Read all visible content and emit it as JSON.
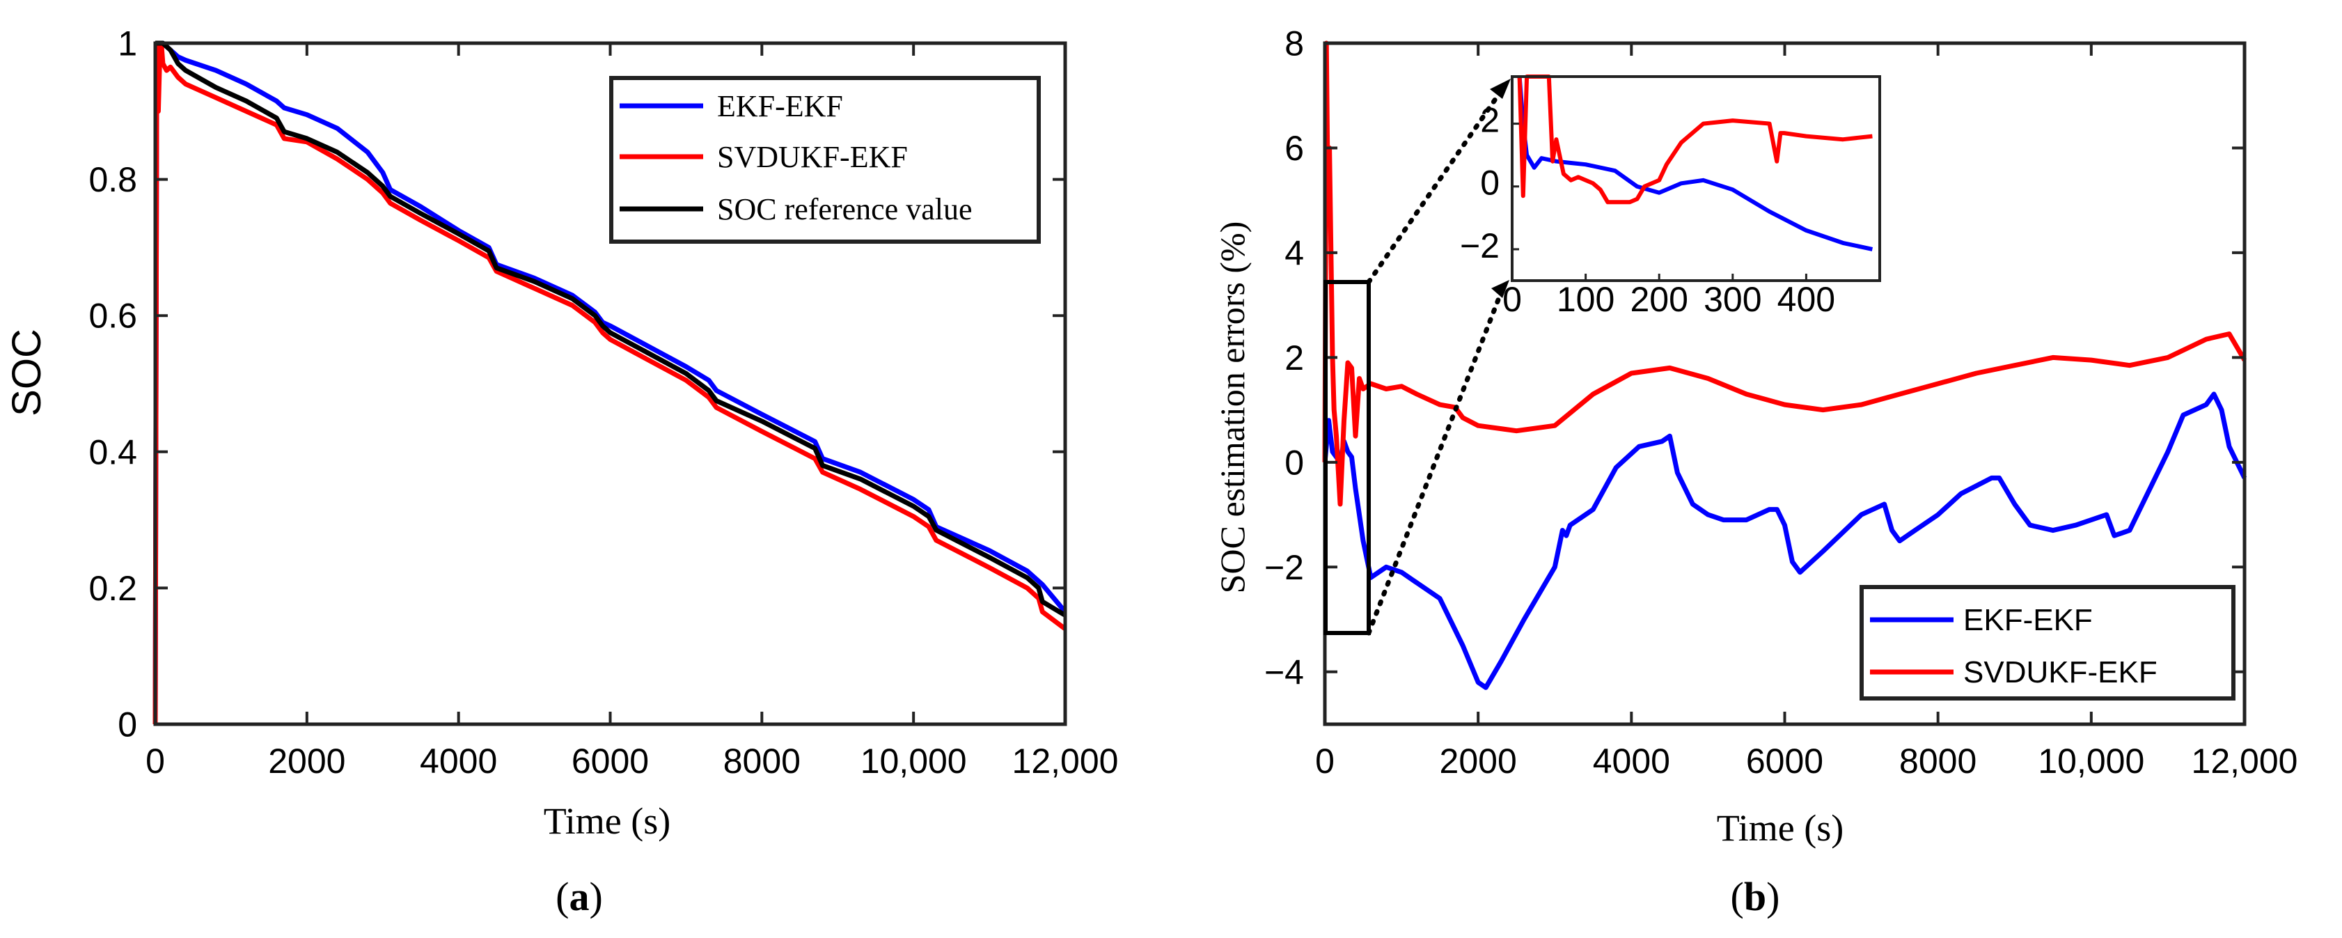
{
  "chart_data": [
    {
      "id": "a",
      "type": "line",
      "panel_label": "a",
      "xlabel": "Time  (s)",
      "ylabel": "SOC",
      "xlim": [
        0,
        12000
      ],
      "ylim": [
        0,
        1
      ],
      "xticks": [
        0,
        2000,
        4000,
        6000,
        8000,
        10000,
        12000
      ],
      "xtick_labels": [
        "0",
        "2000",
        "4000",
        "6000",
        "8000",
        "10,000",
        "12,000"
      ],
      "yticks": [
        0,
        0.2,
        0.4,
        0.6,
        0.8,
        1
      ],
      "ytick_labels": [
        "0",
        "0.2",
        "0.4",
        "0.6",
        "0.8",
        "1"
      ],
      "legend_position": "top-right",
      "series": [
        {
          "name": "EKF-EKF",
          "color": "#0000ff",
          "x": [
            0,
            20,
            60,
            100,
            200,
            300,
            400,
            800,
            1200,
            1600,
            1700,
            2000,
            2400,
            2800,
            3000,
            3100,
            3500,
            4000,
            4400,
            4500,
            5000,
            5500,
            5800,
            5900,
            6000,
            6500,
            7000,
            7300,
            7400,
            8000,
            8700,
            8800,
            9300,
            10000,
            10200,
            10300,
            11000,
            11500,
            11700,
            12000
          ],
          "y": [
            0,
            0.96,
            0.99,
            1.0,
            0.99,
            0.98,
            0.975,
            0.96,
            0.94,
            0.915,
            0.905,
            0.895,
            0.875,
            0.84,
            0.81,
            0.785,
            0.76,
            0.725,
            0.7,
            0.675,
            0.655,
            0.63,
            0.605,
            0.59,
            0.585,
            0.555,
            0.525,
            0.505,
            0.49,
            0.455,
            0.415,
            0.39,
            0.37,
            0.33,
            0.315,
            0.29,
            0.255,
            0.225,
            0.205,
            0.165
          ]
        },
        {
          "name": "SVDUKF-EKF",
          "color": "#ff0000",
          "x": [
            0,
            20,
            40,
            60,
            80,
            100,
            150,
            200,
            300,
            400,
            800,
            1200,
            1600,
            1700,
            2000,
            2400,
            2800,
            3000,
            3100,
            3500,
            4000,
            4400,
            4500,
            5000,
            5500,
            5800,
            5900,
            6000,
            6500,
            7000,
            7300,
            7400,
            8000,
            8700,
            8800,
            9300,
            10000,
            10200,
            10300,
            11000,
            11500,
            11650,
            11700,
            12000
          ],
          "y": [
            0,
            1.0,
            0.9,
            0.98,
            1.0,
            0.97,
            0.96,
            0.965,
            0.95,
            0.94,
            0.92,
            0.9,
            0.88,
            0.86,
            0.855,
            0.83,
            0.8,
            0.78,
            0.765,
            0.74,
            0.71,
            0.685,
            0.665,
            0.64,
            0.615,
            0.59,
            0.575,
            0.565,
            0.535,
            0.505,
            0.48,
            0.465,
            0.43,
            0.39,
            0.37,
            0.345,
            0.305,
            0.29,
            0.27,
            0.23,
            0.2,
            0.185,
            0.165,
            0.14
          ]
        },
        {
          "name": "SOC reference value",
          "color": "#000000",
          "x": [
            0,
            100,
            200,
            300,
            400,
            800,
            1200,
            1600,
            1700,
            2000,
            2400,
            2800,
            3000,
            3100,
            3500,
            4000,
            4400,
            4500,
            5000,
            5500,
            5800,
            5900,
            6000,
            6500,
            7000,
            7300,
            7400,
            8000,
            8700,
            8800,
            9300,
            10000,
            10200,
            10300,
            11000,
            11500,
            11650,
            11700,
            12000
          ],
          "y": [
            1.0,
            1.0,
            0.99,
            0.97,
            0.96,
            0.935,
            0.915,
            0.89,
            0.87,
            0.86,
            0.84,
            0.81,
            0.79,
            0.775,
            0.75,
            0.72,
            0.695,
            0.67,
            0.65,
            0.625,
            0.6,
            0.585,
            0.575,
            0.545,
            0.515,
            0.49,
            0.475,
            0.445,
            0.405,
            0.38,
            0.36,
            0.32,
            0.305,
            0.285,
            0.245,
            0.215,
            0.2,
            0.18,
            0.16
          ]
        }
      ]
    },
    {
      "id": "b",
      "type": "line",
      "panel_label": "b",
      "xlabel": "Time  (s)",
      "ylabel": "SOC estimation errors  (%)",
      "xlim": [
        0,
        12000
      ],
      "ylim": [
        -5,
        8
      ],
      "xticks": [
        0,
        2000,
        4000,
        6000,
        8000,
        10000,
        12000
      ],
      "xtick_labels": [
        "0",
        "2000",
        "4000",
        "6000",
        "8000",
        "10,000",
        "12,000"
      ],
      "yticks": [
        -4,
        -2,
        0,
        2,
        4,
        6,
        8
      ],
      "ytick_labels": [
        "−4",
        "−2",
        "0",
        "2",
        "4",
        "6",
        "8"
      ],
      "legend_position": "bottom-right",
      "series": [
        {
          "name": "EKF-EKF",
          "color": "#0000ff",
          "x": [
            0,
            50,
            100,
            150,
            200,
            250,
            300,
            350,
            400,
            500,
            600,
            700,
            800,
            1000,
            1200,
            1500,
            1800,
            2000,
            2100,
            2300,
            2600,
            3000,
            3100,
            3150,
            3200,
            3300,
            3500,
            3800,
            4100,
            4400,
            4500,
            4600,
            4800,
            5000,
            5200,
            5500,
            5800,
            5900,
            6000,
            6100,
            6200,
            6500,
            7000,
            7300,
            7400,
            7500,
            7700,
            8000,
            8300,
            8700,
            8800,
            9000,
            9200,
            9500,
            9800,
            10000,
            10200,
            10300,
            10500,
            11000,
            11200,
            11500,
            11600,
            11700,
            11800,
            12000
          ],
          "y": [
            0,
            0.8,
            0.2,
            0.1,
            0.0,
            0.4,
            0.2,
            0.1,
            -0.5,
            -1.5,
            -2.2,
            -2.1,
            -2.0,
            -2.1,
            -2.3,
            -2.6,
            -3.5,
            -4.2,
            -4.3,
            -3.8,
            -3.0,
            -2.0,
            -1.3,
            -1.4,
            -1.2,
            -1.1,
            -0.9,
            -0.1,
            0.3,
            0.4,
            0.5,
            -0.2,
            -0.8,
            -1.0,
            -1.1,
            -1.1,
            -0.9,
            -0.9,
            -1.2,
            -1.9,
            -2.1,
            -1.7,
            -1.0,
            -0.8,
            -1.3,
            -1.5,
            -1.3,
            -1.0,
            -0.6,
            -0.3,
            -0.3,
            -0.8,
            -1.2,
            -1.3,
            -1.2,
            -1.1,
            -1.0,
            -1.4,
            -1.3,
            0.2,
            0.9,
            1.1,
            1.3,
            1.0,
            0.3,
            -0.3
          ]
        },
        {
          "name": "SVDUKF-EKF",
          "color": "#ff0000",
          "x": [
            0,
            20,
            40,
            60,
            80,
            100,
            120,
            150,
            200,
            250,
            300,
            350,
            400,
            450,
            500,
            600,
            800,
            1000,
            1200,
            1500,
            1700,
            1800,
            2000,
            2500,
            3000,
            3500,
            4000,
            4500,
            5000,
            5500,
            6000,
            6500,
            7000,
            7500,
            8000,
            8500,
            9000,
            9500,
            10000,
            10500,
            11000,
            11500,
            11800,
            12000
          ],
          "y": [
            0,
            8,
            5,
            6,
            4,
            2,
            1,
            0.5,
            -0.8,
            0.8,
            1.9,
            1.8,
            0.5,
            1.6,
            1.4,
            1.5,
            1.4,
            1.45,
            1.3,
            1.1,
            1.05,
            0.85,
            0.7,
            0.6,
            0.7,
            1.3,
            1.7,
            1.8,
            1.6,
            1.3,
            1.1,
            1.0,
            1.1,
            1.3,
            1.5,
            1.7,
            1.85,
            2.0,
            1.95,
            1.85,
            2.0,
            2.35,
            2.45,
            1.95
          ]
        }
      ],
      "inset": {
        "xlim": [
          0,
          500
        ],
        "ylim": [
          -3,
          3.5
        ],
        "xticks": [
          0,
          100,
          200,
          300,
          400
        ],
        "xtick_labels": [
          "0",
          "100",
          "200",
          "300",
          "400"
        ],
        "yticks": [
          -2,
          0,
          2
        ],
        "ytick_labels": [
          "−2",
          "0",
          "2"
        ],
        "series": [
          {
            "name": "EKF-EKF",
            "color": "#0000ff",
            "x": [
              10,
              15,
              20,
              30,
              40,
              60,
              80,
              100,
              140,
              170,
              200,
              230,
              260,
              300,
              350,
              400,
              450,
              490
            ],
            "y": [
              3.5,
              2.0,
              1.0,
              0.6,
              0.9,
              0.8,
              0.75,
              0.7,
              0.5,
              0.0,
              -0.2,
              0.1,
              0.2,
              -0.1,
              -0.8,
              -1.4,
              -1.8,
              -2.0
            ]
          },
          {
            "name": "SVDUKF-EKF",
            "color": "#ff0000",
            "x": [
              10,
              15,
              20,
              50,
              55,
              60,
              70,
              80,
              90,
              100,
              110,
              120,
              130,
              140,
              160,
              170,
              180,
              200,
              210,
              230,
              260,
              300,
              350,
              360,
              365,
              370,
              400,
              450,
              490
            ],
            "y": [
              3.5,
              -0.3,
              3.5,
              3.5,
              0.8,
              1.5,
              0.4,
              0.2,
              0.3,
              0.2,
              0.1,
              -0.1,
              -0.5,
              -0.5,
              -0.5,
              -0.4,
              0.0,
              0.2,
              0.7,
              1.4,
              2.0,
              2.1,
              2.0,
              0.8,
              1.7,
              1.7,
              1.6,
              1.5,
              1.6
            ]
          }
        ]
      }
    }
  ]
}
